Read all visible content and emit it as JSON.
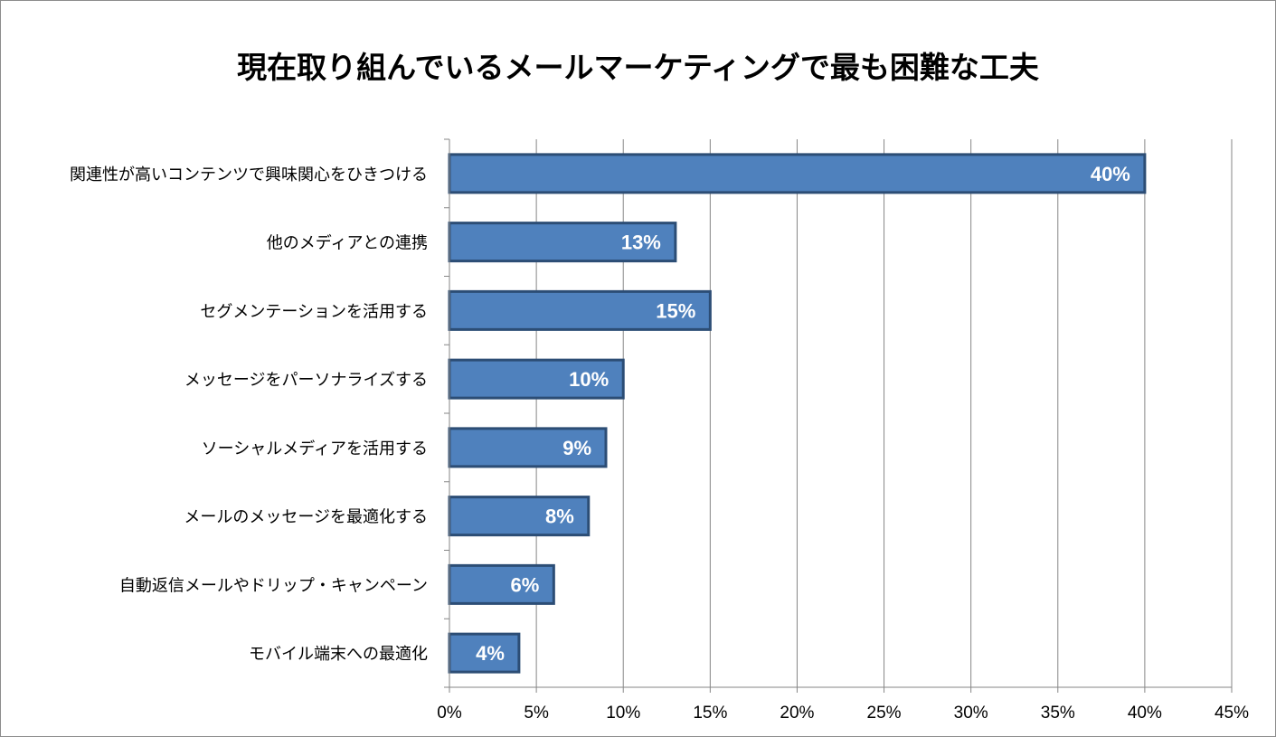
{
  "chart_data": {
    "type": "bar",
    "orientation": "horizontal",
    "title": "現在取り組んでいるメールマーケティングで最も困難な工夫",
    "xlabel": "",
    "ylabel": "",
    "categories": [
      "関連性が高いコンテンツで興味関心をひきつける",
      "他のメディアとの連携",
      "セグメンテーションを活用する",
      "メッセージをパーソナライズする",
      "ソーシャルメディアを活用する",
      "メールのメッセージを最適化する",
      "自動返信メールやドリップ・キャンペーン",
      "モバイル端末への最適化"
    ],
    "values": [
      40,
      13,
      15,
      10,
      9,
      8,
      6,
      4
    ],
    "data_labels": [
      "40%",
      "13%",
      "15%",
      "10%",
      "9%",
      "8%",
      "6%",
      "4%"
    ],
    "xlim": [
      0,
      45
    ],
    "xticks": [
      0,
      5,
      10,
      15,
      20,
      25,
      30,
      35,
      40,
      45
    ],
    "xtick_labels": [
      "0%",
      "5%",
      "10%",
      "15%",
      "20%",
      "25%",
      "30%",
      "35%",
      "40%",
      "45%"
    ],
    "grid": "vertical",
    "legend": "none",
    "colors": {
      "bar_fill": "#4f81bd",
      "bar_stroke": "#2c4d75",
      "grid": "#868686",
      "axis": "#868686",
      "label_text": "#ffffff"
    }
  }
}
